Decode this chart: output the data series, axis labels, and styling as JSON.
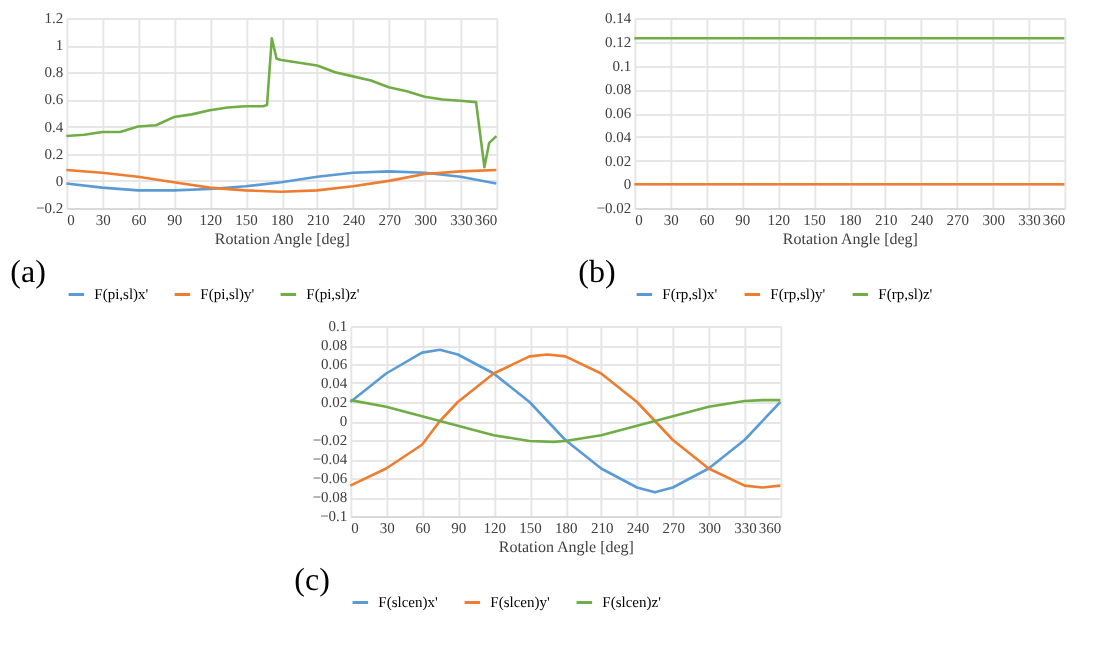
{
  "chart_data": [
    {
      "type": "line",
      "xlabel": "Rotation Angle [deg]",
      "xlim": [
        0,
        360
      ],
      "xticks": [
        0,
        30,
        60,
        90,
        120,
        150,
        180,
        210,
        240,
        270,
        300,
        330,
        360
      ],
      "ylim": [
        -0.2,
        1.2
      ],
      "yticks": [
        -0.2,
        0,
        0.2,
        0.4,
        0.6,
        0.8,
        1,
        1.2
      ],
      "grid": true,
      "legend": "bottom",
      "annotations": [
        "(a)"
      ],
      "series": [
        {
          "name": "F(pi,sl)x'",
          "color": "#5b9bd5",
          "x": [
            0,
            30,
            60,
            90,
            120,
            150,
            180,
            210,
            240,
            270,
            300,
            330,
            360
          ],
          "values": [
            -0.02,
            -0.05,
            -0.07,
            -0.07,
            -0.06,
            -0.04,
            -0.01,
            0.03,
            0.06,
            0.07,
            0.06,
            0.03,
            -0.02
          ]
        },
        {
          "name": "F(pi,sl)y'",
          "color": "#ed7d31",
          "x": [
            0,
            30,
            60,
            90,
            120,
            150,
            180,
            210,
            240,
            270,
            300,
            330,
            360
          ],
          "values": [
            0.08,
            0.06,
            0.03,
            -0.01,
            -0.05,
            -0.07,
            -0.08,
            -0.07,
            -0.04,
            0.0,
            0.05,
            0.07,
            0.08
          ]
        },
        {
          "name": "F(pi,sl)z'",
          "color": "#70ad47",
          "x": [
            0,
            15,
            30,
            45,
            60,
            75,
            90,
            105,
            120,
            135,
            150,
            165,
            168,
            172,
            176,
            180,
            195,
            210,
            225,
            240,
            255,
            270,
            285,
            300,
            315,
            330,
            343,
            350,
            354,
            360
          ],
          "values": [
            0.33,
            0.34,
            0.36,
            0.36,
            0.4,
            0.41,
            0.47,
            0.49,
            0.52,
            0.54,
            0.55,
            0.55,
            0.56,
            1.05,
            0.9,
            0.89,
            0.87,
            0.85,
            0.8,
            0.77,
            0.74,
            0.69,
            0.66,
            0.62,
            0.6,
            0.59,
            0.58,
            0.1,
            0.28,
            0.33
          ]
        }
      ]
    },
    {
      "type": "line",
      "xlabel": "Rotation Angle [deg]",
      "xlim": [
        0,
        360
      ],
      "xticks": [
        0,
        30,
        60,
        90,
        120,
        150,
        180,
        210,
        240,
        270,
        300,
        330,
        360
      ],
      "ylim": [
        -0.02,
        0.14
      ],
      "yticks": [
        -0.02,
        0,
        0.02,
        0.04,
        0.06,
        0.08,
        0.1,
        0.12,
        0.14
      ],
      "grid": true,
      "legend": "bottom",
      "annotations": [
        "(b)"
      ],
      "series": [
        {
          "name": "F(rp,sl)x'",
          "color": "#5b9bd5"
        },
        {
          "name": "F(rp,sl)y'",
          "color": "#ed7d31",
          "x": [
            0,
            360
          ],
          "values": [
            0,
            0
          ]
        },
        {
          "name": "F(rp,sl)z'",
          "color": "#70ad47",
          "x": [
            0,
            360
          ],
          "values": [
            0.123,
            0.123
          ]
        }
      ]
    },
    {
      "type": "line",
      "xlabel": "Rotation Angle [deg]",
      "xlim": [
        0,
        360
      ],
      "xticks": [
        0,
        30,
        60,
        90,
        120,
        150,
        180,
        210,
        240,
        270,
        300,
        330,
        360
      ],
      "ylim": [
        -0.1,
        0.1
      ],
      "yticks": [
        -0.1,
        -0.08,
        -0.06,
        -0.04,
        -0.02,
        0,
        0.02,
        0.04,
        0.06,
        0.08,
        0.1
      ],
      "grid": true,
      "legend": "bottom",
      "annotations": [
        "(c)"
      ],
      "series": [
        {
          "name": "F(slcen)x'",
          "color": "#5b9bd5",
          "x": [
            0,
            30,
            60,
            75,
            90,
            120,
            150,
            180,
            210,
            240,
            255,
            270,
            300,
            330,
            360
          ],
          "values": [
            0.02,
            0.05,
            0.072,
            0.075,
            0.07,
            0.05,
            0.02,
            -0.02,
            -0.05,
            -0.07,
            -0.075,
            -0.07,
            -0.05,
            -0.02,
            0.02
          ]
        },
        {
          "name": "F(slcen)y'",
          "color": "#ed7d31",
          "x": [
            0,
            30,
            60,
            75,
            90,
            120,
            150,
            165,
            180,
            210,
            240,
            255,
            270,
            300,
            330,
            345,
            360
          ],
          "values": [
            -0.068,
            -0.05,
            -0.025,
            0,
            0.02,
            0.05,
            0.068,
            0.07,
            0.068,
            0.05,
            0.02,
            0,
            -0.02,
            -0.05,
            -0.068,
            -0.07,
            -0.068
          ]
        },
        {
          "name": "F(slcen)z'",
          "color": "#70ad47",
          "x": [
            0,
            30,
            60,
            75,
            90,
            120,
            150,
            170,
            180,
            210,
            240,
            255,
            270,
            300,
            330,
            345,
            360
          ],
          "values": [
            0.022,
            0.015,
            0.005,
            0,
            -0.005,
            -0.015,
            -0.021,
            -0.022,
            -0.021,
            -0.015,
            -0.005,
            0,
            0.005,
            0.015,
            0.021,
            0.022,
            0.022
          ]
        }
      ]
    }
  ]
}
